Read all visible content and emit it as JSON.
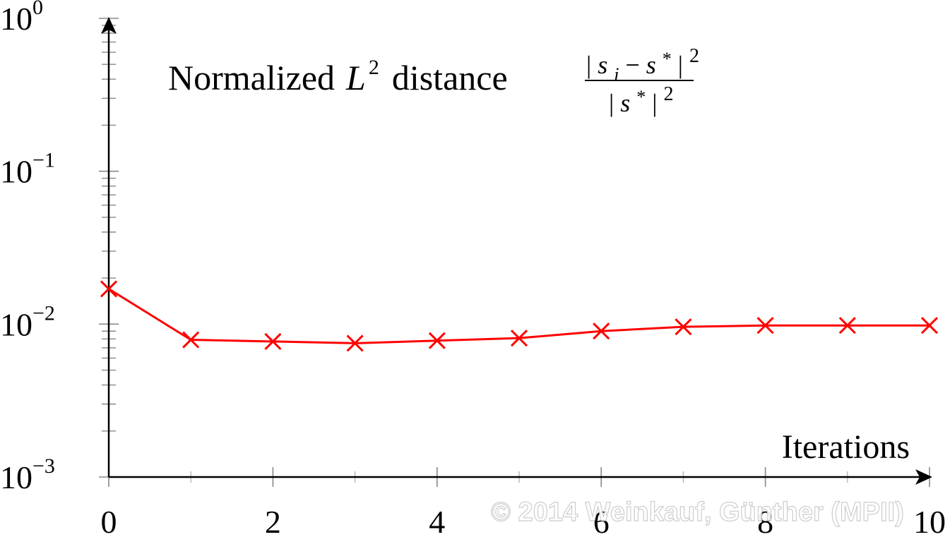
{
  "chart_data": {
    "type": "line",
    "title": {
      "text": "Normalized",
      "math_base": "L",
      "math_exp": "2",
      "text_after": "distance",
      "fraction": {
        "numerator_open": "|",
        "numerator_s": "s",
        "numerator_sub": "i",
        "numerator_minus": "−",
        "numerator_s2": "s",
        "numerator_star": "*",
        "numerator_close": "|",
        "numerator_exp": "2",
        "denominator_open": "|",
        "denominator_s": "s",
        "denominator_star": "*",
        "denominator_close": "|",
        "denominator_exp": "2"
      }
    },
    "xlabel": "Iterations",
    "ylabel": "",
    "xlim": [
      0,
      10
    ],
    "ylim": [
      0.001,
      1
    ],
    "yscale": "log",
    "grid": false,
    "xticks": [
      0,
      2,
      4,
      6,
      8,
      10
    ],
    "xtick_labels": [
      "0",
      "2",
      "4",
      "6",
      "8",
      "10"
    ],
    "yticks": [
      {
        "value": 1,
        "base": "10",
        "exp": "0"
      },
      {
        "value": 0.1,
        "base": "10",
        "exp": "−1"
      },
      {
        "value": 0.01,
        "base": "10",
        "exp": "−2"
      },
      {
        "value": 0.001,
        "base": "10",
        "exp": "−3"
      }
    ],
    "series": [
      {
        "color": "#ff0000",
        "marker": "x",
        "x": [
          0,
          1,
          2,
          3,
          4,
          5,
          6,
          7,
          8,
          9,
          10
        ],
        "y": [
          0.017,
          0.0079,
          0.0077,
          0.0075,
          0.0078,
          0.0081,
          0.009,
          0.0096,
          0.0098,
          0.0098,
          0.0098
        ]
      }
    ]
  },
  "watermark": "© 2014 Weinkauf, Günther (MPII)"
}
